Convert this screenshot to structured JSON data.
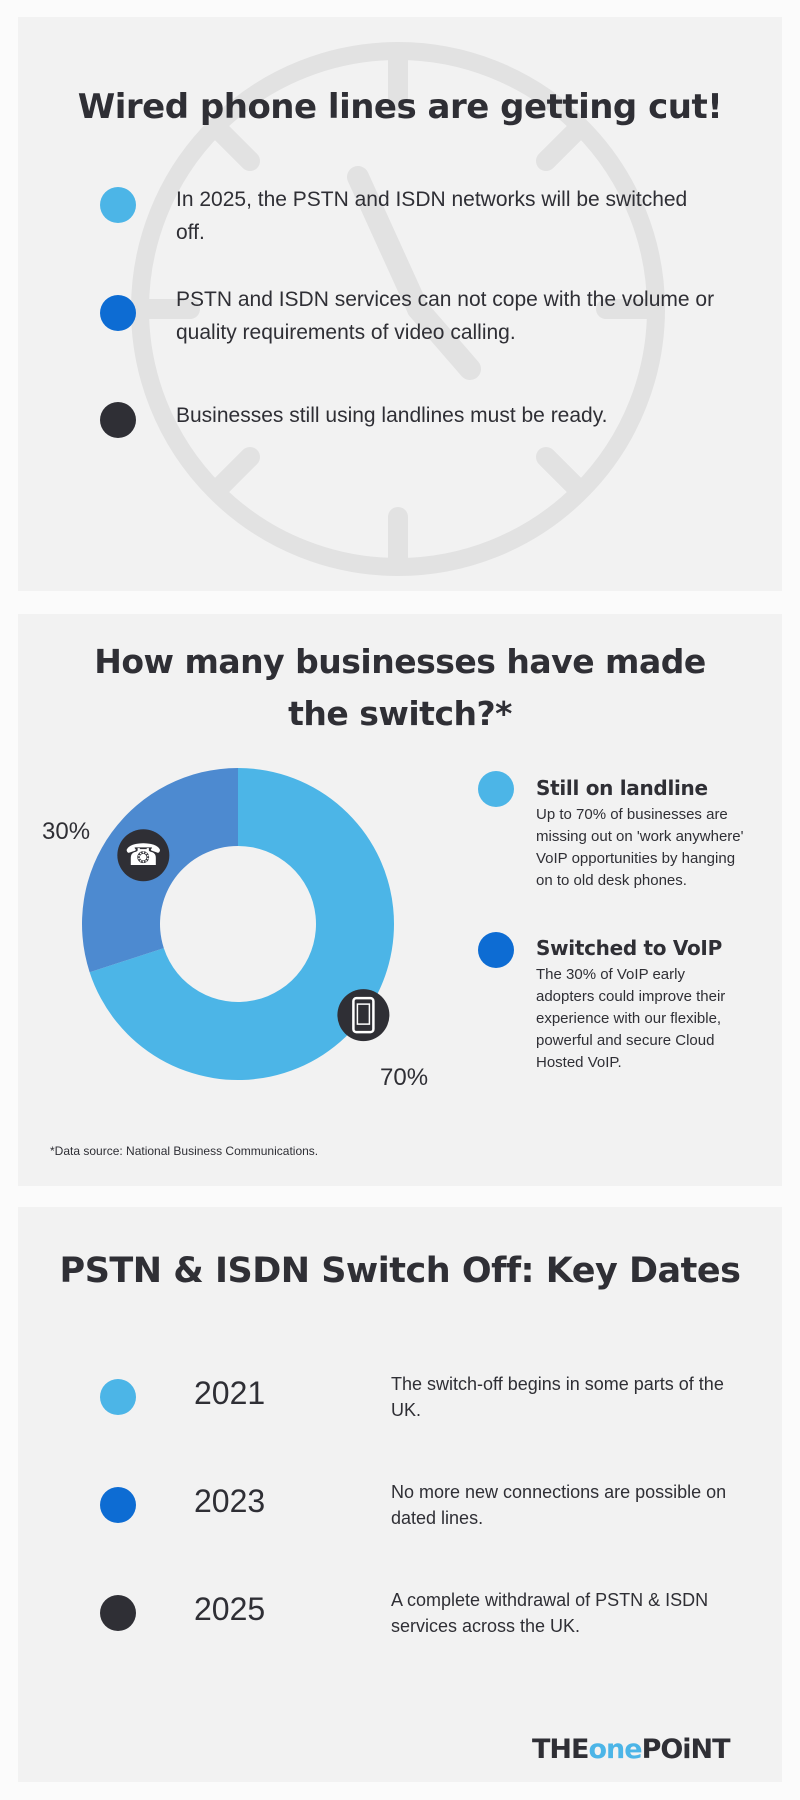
{
  "section1": {
    "title": "Wired phone lines are getting cut!",
    "bullets": [
      {
        "text": "In 2025, the PSTN and ISDN networks will be switched off.",
        "color": "#4cb5e7"
      },
      {
        "text": "PSTN and  ISDN services can not cope with the volume or quality requirements of video calling.",
        "color": "#0d6cd3"
      },
      {
        "text": "Businesses still using landlines must be ready.",
        "color": "#2f2f35"
      }
    ],
    "background_icon": "clock-icon"
  },
  "section2": {
    "title_line1": "How many businesses have made",
    "title_line2": "the switch?*",
    "legend": [
      {
        "title": "Still on landline",
        "desc": "Up to 70% of businesses are missing out on 'work anywhere' VoIP opportunities by hanging on to old desk phones.",
        "color": "#4cb5e7"
      },
      {
        "title": "Switched to VoIP",
        "desc": "The 30% of VoIP early adopters could improve their experience with our flexible, powerful and secure Cloud Hosted VoIP.",
        "color": "#0d6cd3"
      }
    ],
    "footnote": "*Data source: National Business Communications.",
    "label_30": "30%",
    "label_70": "70%"
  },
  "chart_data": {
    "type": "pie",
    "donut": true,
    "slices": [
      {
        "label": "70%",
        "value": 70,
        "color": "#4cb5e7",
        "icon": "mobile-phone-icon"
      },
      {
        "label": "30%",
        "value": 30,
        "color": "#4d8ad0",
        "icon": "desk-phone-icon"
      }
    ]
  },
  "section3": {
    "title": "PSTN & ISDN Switch Off: Key Dates",
    "dates": [
      {
        "year": "2021",
        "desc": "The switch-off begins in some parts of the UK.",
        "color": "#4cb5e7"
      },
      {
        "year": "2023",
        "desc": "No more new connections are possible on dated lines.",
        "color": "#0d6cd3"
      },
      {
        "year": "2025",
        "desc": "A complete withdrawal of PSTN & ISDN services across the UK.",
        "color": "#2f2f35"
      }
    ],
    "logo": {
      "part1": "THE",
      "part2": "one",
      "part3": "POiNT"
    }
  }
}
